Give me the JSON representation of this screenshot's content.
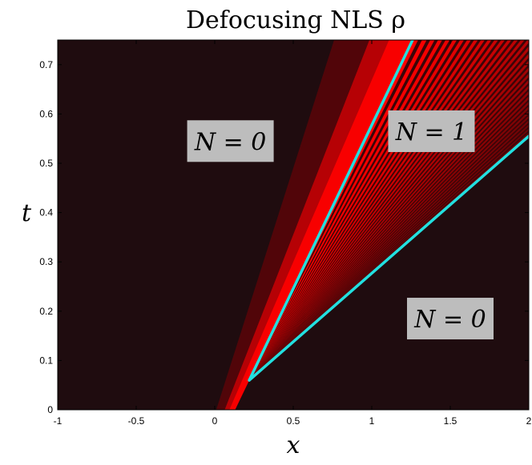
{
  "chart_data": {
    "type": "heatmap",
    "title": "Defocusing NLS ρ",
    "xlabel": "x",
    "ylabel": "t",
    "xlim": [
      -1,
      2
    ],
    "ylim": [
      0,
      0.75
    ],
    "xticks": [
      "-1",
      "-0.5",
      "0",
      "0.5",
      "1",
      "1.5",
      "2"
    ],
    "xtick_values": [
      -1,
      -0.5,
      0,
      0.5,
      1,
      1.5,
      2
    ],
    "yticks": [
      "0",
      "0.1",
      "0.2",
      "0.3",
      "0.4",
      "0.5",
      "0.6",
      "0.7"
    ],
    "ytick_values": [
      0,
      0.1,
      0.2,
      0.3,
      0.4,
      0.5,
      0.6,
      0.7
    ],
    "colormap": {
      "low": "#1f0c0f",
      "high": "#ff0000"
    },
    "line_color": "#22e0e0",
    "lines": [
      {
        "from": [
          0.22,
          0.06
        ],
        "to": [
          1.26,
          0.75
        ]
      },
      {
        "from": [
          0.22,
          0.06
        ],
        "to": [
          2.0,
          0.555
        ]
      }
    ],
    "annotations": [
      {
        "text": "N = 0",
        "x": 0.1,
        "y": 0.545
      },
      {
        "text": "N = 1",
        "x": 1.38,
        "y": 0.565
      },
      {
        "text": "N = 0",
        "x": 1.5,
        "y": 0.185
      }
    ]
  }
}
